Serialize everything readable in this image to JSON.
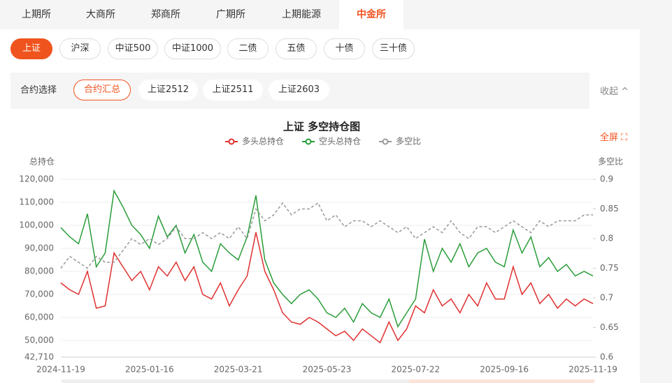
{
  "tabs": [
    "上期所",
    "大商所",
    "郑商所",
    "广期所",
    "上期能源",
    "中金所"
  ],
  "products": [
    "上证",
    "沪深",
    "中证500",
    "中证1000",
    "二债",
    "五债",
    "十债",
    "三十债"
  ],
  "contract_bar": {
    "label": "合约选择",
    "options": [
      "合约汇总",
      "上证2512",
      "上证2511",
      "上证2603"
    ],
    "toggle": "收起 ^"
  },
  "fullscreen": "全屏 ⛶",
  "chart_data": {
    "type": "line",
    "title": "上证 多空持仓图",
    "y_label": "总持仓",
    "y2_label": "多空比",
    "categories": [
      "2024-11-19",
      null,
      null,
      null,
      null,
      null,
      null,
      null,
      null,
      null,
      "2025-01-16",
      null,
      null,
      null,
      null,
      null,
      null,
      null,
      null,
      null,
      "2025-03-21",
      null,
      null,
      null,
      null,
      null,
      null,
      null,
      null,
      null,
      "2025-05-23",
      null,
      null,
      null,
      null,
      null,
      null,
      null,
      null,
      null,
      "2025-07-22",
      null,
      null,
      null,
      null,
      null,
      null,
      null,
      null,
      null,
      "2025-09-16",
      null,
      null,
      null,
      null,
      null,
      null,
      null,
      null,
      null,
      "2025-11-19"
    ],
    "series": [
      {
        "name": "多头总持仓",
        "color": "#e03030",
        "values": [
          75000,
          72000,
          70000,
          80000,
          64000,
          65000,
          88000,
          82000,
          76000,
          80000,
          72000,
          82000,
          78000,
          84000,
          76000,
          82000,
          70000,
          68000,
          75000,
          65000,
          72000,
          78000,
          97000,
          80000,
          72000,
          62000,
          58000,
          57000,
          60000,
          58000,
          55000,
          52000,
          54000,
          50000,
          55000,
          52000,
          49000,
          58000,
          50000,
          55000,
          65000,
          62000,
          72000,
          65000,
          68000,
          62000,
          70000,
          65000,
          75000,
          68000,
          68000,
          82000,
          70000,
          75000,
          66000,
          70000,
          64000,
          68000,
          65000,
          68000,
          66000
        ]
      },
      {
        "name": "空头总持仓",
        "color": "#2a9d3a",
        "values": [
          99000,
          95000,
          92000,
          105000,
          82000,
          88000,
          115000,
          108000,
          100000,
          96000,
          90000,
          104000,
          95000,
          100000,
          88000,
          96000,
          84000,
          80000,
          92000,
          88000,
          85000,
          95000,
          113000,
          85000,
          75000,
          70000,
          66000,
          70000,
          72000,
          68000,
          62000,
          60000,
          64000,
          58000,
          66000,
          62000,
          60000,
          68000,
          56000,
          62000,
          68000,
          94000,
          80000,
          90000,
          84000,
          92000,
          82000,
          88000,
          90000,
          84000,
          82000,
          98000,
          88000,
          95000,
          82000,
          86000,
          80000,
          83000,
          78000,
          80000,
          78000
        ]
      },
      {
        "name": "多空比",
        "color": "#999999",
        "axis": "y2",
        "dashed": true,
        "values": [
          0.75,
          0.77,
          0.76,
          0.75,
          0.77,
          0.76,
          0.76,
          0.78,
          0.8,
          0.79,
          0.8,
          0.79,
          0.8,
          0.82,
          0.8,
          0.8,
          0.81,
          0.8,
          0.81,
          0.8,
          0.82,
          0.8,
          0.85,
          0.83,
          0.84,
          0.86,
          0.84,
          0.85,
          0.85,
          0.86,
          0.83,
          0.84,
          0.82,
          0.83,
          0.83,
          0.82,
          0.83,
          0.82,
          0.81,
          0.82,
          0.8,
          0.81,
          0.82,
          0.81,
          0.83,
          0.81,
          0.8,
          0.82,
          0.82,
          0.81,
          0.82,
          0.83,
          0.82,
          0.81,
          0.83,
          0.82,
          0.83,
          0.83,
          0.83,
          0.84,
          0.84
        ]
      }
    ],
    "ylim": [
      42710,
      120000
    ],
    "yticks": [
      {
        "value": 42710,
        "label": "42,710"
      },
      {
        "value": 50000,
        "label": "50,000"
      },
      {
        "value": 60000,
        "label": "60,000"
      },
      {
        "value": 70000,
        "label": "70,000"
      },
      {
        "value": 80000,
        "label": "80,000"
      },
      {
        "value": 90000,
        "label": "90,000"
      },
      {
        "value": 100000,
        "label": "100,000"
      },
      {
        "value": 110000,
        "label": "110,000"
      },
      {
        "value": 120000,
        "label": "120,000"
      }
    ],
    "y2lim": [
      0.6,
      0.9
    ],
    "y2ticks": [
      0.6,
      0.65,
      0.7,
      0.75,
      0.8,
      0.85,
      0.9
    ],
    "grid": true
  }
}
